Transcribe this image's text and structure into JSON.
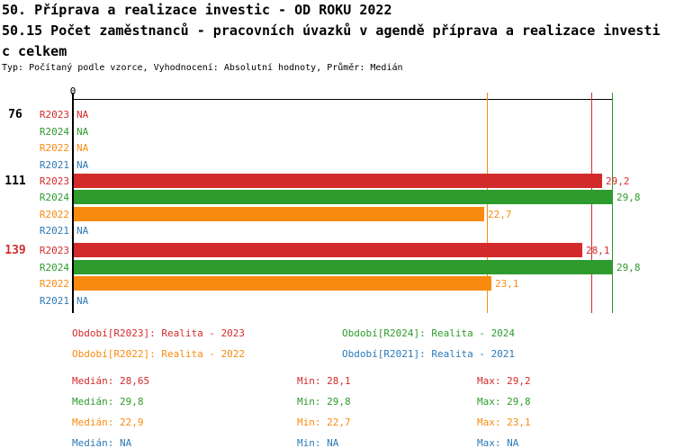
{
  "header": {
    "line1": "50. Příprava a realizace investic - OD ROKU 2022",
    "line2": "50.15 Počet zaměstnanců - pracovních úvazků v agendě příprava a realizace investi",
    "line3": "c celkem",
    "subtitle": "Typ: Počítaný podle vzorce, Vyhodnocení: Absolutní hodnoty, Průměr: Medián"
  },
  "chart_data": {
    "type": "bar",
    "orientation": "horizontal",
    "value_axis": {
      "zero_label": "0",
      "min": 0,
      "max_shown": 29.8
    },
    "na_text": "NA",
    "series_order": [
      "R2023",
      "R2024",
      "R2022",
      "R2021"
    ],
    "series_colors": {
      "R2023": "#d32b2b",
      "R2024": "#2d9b2d",
      "R2022": "#f98a10",
      "R2021": "#2b7ab8"
    },
    "groups": [
      {
        "label": "76",
        "label_color": "#000000",
        "rows": [
          {
            "series": "R2023",
            "value": null,
            "display": "NA"
          },
          {
            "series": "R2024",
            "value": null,
            "display": "NA"
          },
          {
            "series": "R2022",
            "value": null,
            "display": "NA"
          },
          {
            "series": "R2021",
            "value": null,
            "display": "NA"
          }
        ]
      },
      {
        "label": "111",
        "label_color": "#000000",
        "rows": [
          {
            "series": "R2023",
            "value": 29.2,
            "display": "29,2"
          },
          {
            "series": "R2024",
            "value": 29.8,
            "display": "29,8"
          },
          {
            "series": "R2022",
            "value": 22.7,
            "display": "22,7"
          },
          {
            "series": "R2021",
            "value": null,
            "display": "NA"
          }
        ]
      },
      {
        "label": "139",
        "label_color": "#d32b2b",
        "rows": [
          {
            "series": "R2023",
            "value": 28.1,
            "display": "28,1"
          },
          {
            "series": "R2024",
            "value": 29.8,
            "display": "29,8"
          },
          {
            "series": "R2022",
            "value": 23.1,
            "display": "23,1"
          },
          {
            "series": "R2021",
            "value": null,
            "display": "NA"
          }
        ]
      }
    ],
    "reference_lines": [
      {
        "series": "R2023",
        "value": 28.65
      },
      {
        "series": "R2024",
        "value": 29.8
      },
      {
        "series": "R2022",
        "value": 22.9
      }
    ]
  },
  "legend": {
    "items": [
      {
        "series": "R2023",
        "text": "Období[R2023]: Realita - 2023",
        "column": 0,
        "row": 0
      },
      {
        "series": "R2024",
        "text": "Období[R2024]: Realita - 2024",
        "column": 1,
        "row": 0
      },
      {
        "series": "R2022",
        "text": "Období[R2022]: Realita - 2022",
        "column": 0,
        "row": 1
      },
      {
        "series": "R2021",
        "text": "Období[R2021]: Realita - 2021",
        "column": 1,
        "row": 1
      }
    ]
  },
  "stats": {
    "labels": {
      "median": "Medián",
      "min": "Min",
      "max": "Max"
    },
    "rows": [
      {
        "series": "R2023",
        "median": "28,65",
        "min": "28,1",
        "max": "29,2"
      },
      {
        "series": "R2024",
        "median": "29,8",
        "min": "29,8",
        "max": "29,8"
      },
      {
        "series": "R2022",
        "median": "22,9",
        "min": "22,7",
        "max": "23,1"
      },
      {
        "series": "R2021",
        "median": "NA",
        "min": "NA",
        "max": "NA"
      }
    ]
  }
}
